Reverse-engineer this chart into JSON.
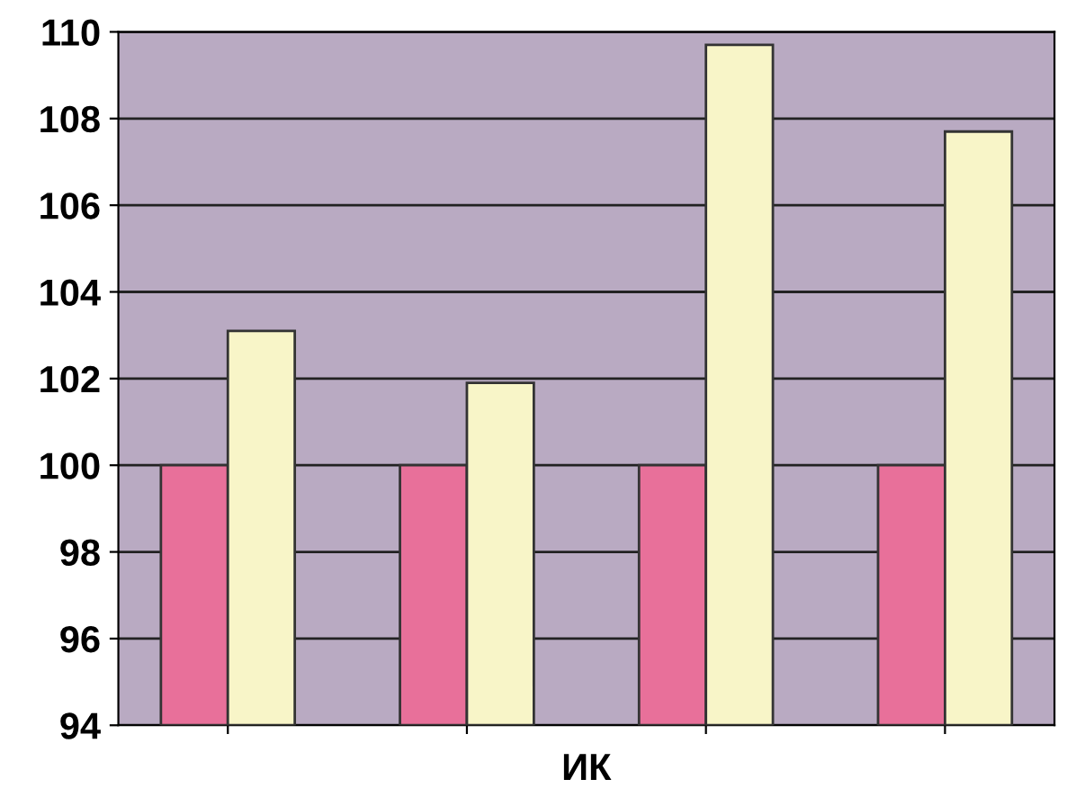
{
  "chart_data": {
    "type": "bar",
    "xlabel": "ИК",
    "categories": [
      null,
      null,
      null,
      null
    ],
    "series": [
      {
        "color": "#e8709a",
        "values": [
          100,
          100,
          100,
          100
        ]
      },
      {
        "color": "#f8f5c8",
        "values": [
          103.1,
          101.9,
          109.7,
          107.7
        ]
      }
    ],
    "ylim": [
      94,
      110
    ],
    "yticks": [
      94,
      96,
      98,
      100,
      102,
      104,
      106,
      108,
      110
    ],
    "grid": "y",
    "legend": false
  }
}
